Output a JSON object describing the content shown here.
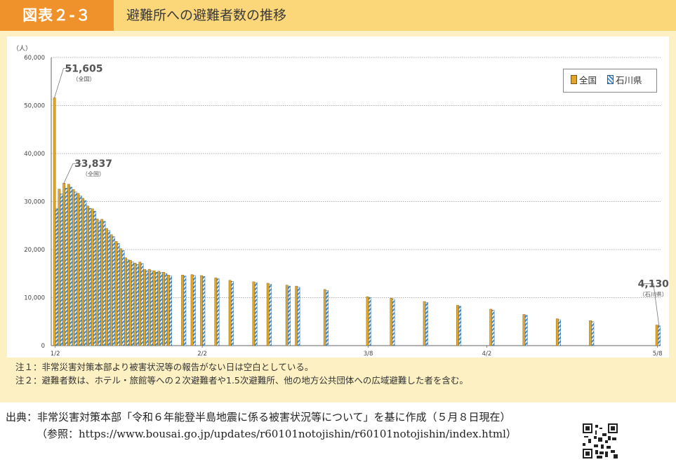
{
  "header": {
    "figure_label": "図表２-３",
    "title": "避難所への避難者数の推移"
  },
  "legend": {
    "national": "全国",
    "ishikawa": "石川県"
  },
  "colors": {
    "national": "#e0a52a",
    "ishikawa_stripe_blue": "#3f8fd8",
    "panel_bg": "#fdf0c2",
    "header_bg": "#fbd77a",
    "badge_bg": "#f0922b"
  },
  "chart_data": {
    "type": "bar",
    "y_unit_label": "（人）",
    "ylim": [
      0,
      60000
    ],
    "yticks": [
      "0",
      "10,000",
      "20,000",
      "30,000",
      "40,000",
      "50,000",
      "60,000"
    ],
    "x_tick_labels": [
      {
        "label": "1/2",
        "day": 0
      },
      {
        "label": "2/2",
        "day": 31
      },
      {
        "label": "3/8",
        "day": 66
      },
      {
        "label": "4/2",
        "day": 91
      },
      {
        "label": "5/8",
        "day": 127
      }
    ],
    "grid": true,
    "legend_position": "top-right",
    "series": [
      {
        "name": "全国",
        "key": "national"
      },
      {
        "name": "石川県",
        "key": "ishikawa"
      }
    ],
    "points": [
      {
        "day": 0,
        "national": 51605,
        "ishikawa": 28500
      },
      {
        "day": 1,
        "national": 32600,
        "ishikawa": 31600
      },
      {
        "day": 2,
        "national": 33837,
        "ishikawa": 32800
      },
      {
        "day": 3,
        "national": 33600,
        "ishikawa": 33000
      },
      {
        "day": 4,
        "national": 32500,
        "ishikawa": 32000
      },
      {
        "day": 5,
        "national": 31700,
        "ishikawa": 31200
      },
      {
        "day": 6,
        "national": 30700,
        "ishikawa": 30200
      },
      {
        "day": 7,
        "national": 29100,
        "ishikawa": 28600
      },
      {
        "day": 8,
        "national": 28500,
        "ishikawa": 28000
      },
      {
        "day": 9,
        "national": 26400,
        "ishikawa": 26000
      },
      {
        "day": 10,
        "national": 26300,
        "ishikawa": 25900
      },
      {
        "day": 11,
        "national": 24400,
        "ishikawa": 24000
      },
      {
        "day": 12,
        "national": 23100,
        "ishikawa": 22700
      },
      {
        "day": 13,
        "national": 21700,
        "ishikawa": 21300
      },
      {
        "day": 14,
        "national": 20200,
        "ishikawa": 19800
      },
      {
        "day": 15,
        "national": 18300,
        "ishikawa": 17900
      },
      {
        "day": 16,
        "national": 17800,
        "ishikawa": 17400
      },
      {
        "day": 17,
        "national": 17200,
        "ishikawa": 16900
      },
      {
        "day": 18,
        "national": 17400,
        "ishikawa": 17100
      },
      {
        "day": 19,
        "national": 15900,
        "ishikawa": 15600
      },
      {
        "day": 20,
        "national": 15900,
        "ishikawa": 15600
      },
      {
        "day": 21,
        "national": 15600,
        "ishikawa": 15300
      },
      {
        "day": 22,
        "national": 15500,
        "ishikawa": 15200
      },
      {
        "day": 23,
        "national": 15300,
        "ishikawa": 15000
      },
      {
        "day": 24,
        "national": 14700,
        "ishikawa": 14500
      },
      {
        "day": 27,
        "national": 14700,
        "ishikawa": 14500
      },
      {
        "day": 29,
        "national": 14800,
        "ishikawa": 14600
      },
      {
        "day": 31,
        "national": 14600,
        "ishikawa": 14400
      },
      {
        "day": 34,
        "national": 14100,
        "ishikawa": 13900
      },
      {
        "day": 37,
        "national": 13600,
        "ishikawa": 13400
      },
      {
        "day": 42,
        "national": 13300,
        "ishikawa": 13100
      },
      {
        "day": 45,
        "national": 13000,
        "ishikawa": 12800
      },
      {
        "day": 49,
        "national": 12600,
        "ishikawa": 12400
      },
      {
        "day": 51,
        "national": 12400,
        "ishikawa": 12200
      },
      {
        "day": 57,
        "national": 11700,
        "ishikawa": 11500
      },
      {
        "day": 66,
        "national": 10200,
        "ishikawa": 10000
      },
      {
        "day": 71,
        "national": 9900,
        "ishikawa": 9700
      },
      {
        "day": 78,
        "national": 9200,
        "ishikawa": 9000
      },
      {
        "day": 85,
        "national": 8400,
        "ishikawa": 8200
      },
      {
        "day": 92,
        "national": 7600,
        "ishikawa": 7400
      },
      {
        "day": 99,
        "national": 6500,
        "ishikawa": 6300
      },
      {
        "day": 106,
        "national": 5600,
        "ishikawa": 5400
      },
      {
        "day": 113,
        "national": 5200,
        "ishikawa": 5000
      },
      {
        "day": 127,
        "national": 4300,
        "ishikawa": 4130
      }
    ],
    "annotations": [
      {
        "value": "51,605",
        "sub": "（全国）",
        "day": 0,
        "series": "national"
      },
      {
        "value": "33,837",
        "sub": "（全国）",
        "day": 2,
        "series": "national"
      },
      {
        "value": "4,130",
        "sub": "（石川県）",
        "day": 127,
        "series": "ishikawa"
      }
    ]
  },
  "notes": [
    "注１：非常災害対策本部より被害状況等の報告がない日は空白としている。",
    "注２：避難者数は、ホテル・旅館等への２次避難者や1.5次避難所、他の地方公共団体への広域避難した者を含む。"
  ],
  "source": {
    "line1": "出典：非常災害対策本部「令和６年能登半島地震に係る被害状況等について」を基に作成（５月８日現在）",
    "line2": "（参照：https://www.bousai.go.jp/updates/r60101notojishin/r60101notojishin/index.html）"
  }
}
